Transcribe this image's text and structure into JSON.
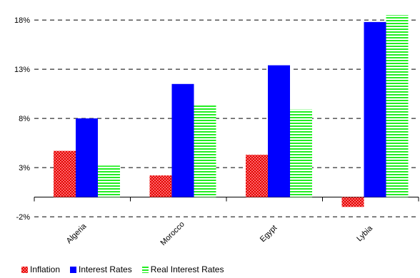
{
  "chart_data": {
    "type": "bar",
    "categories": [
      "Algeria",
      "Morocco",
      "Egypt",
      "Lybia"
    ],
    "series": [
      {
        "name": "Inflation",
        "values": [
          4.7,
          2.2,
          4.3,
          -1.0
        ],
        "color": "#ff2a2a",
        "pattern": "checker"
      },
      {
        "name": "Interest Rates",
        "values": [
          8.0,
          11.5,
          13.4,
          17.8
        ],
        "color": "#0000ff",
        "pattern": "solid"
      },
      {
        "name": "Real Interest Rates",
        "values": [
          3.2,
          9.4,
          8.9,
          18.5
        ],
        "color": "#33ff33",
        "pattern": "stripes"
      }
    ],
    "yticks": [
      "-2%",
      "3%",
      "8%",
      "13%",
      "18%"
    ],
    "ylim": [
      -3,
      19
    ],
    "grid": true,
    "legend": "bottom-left",
    "title": "",
    "xlabel": "",
    "ylabel": ""
  }
}
